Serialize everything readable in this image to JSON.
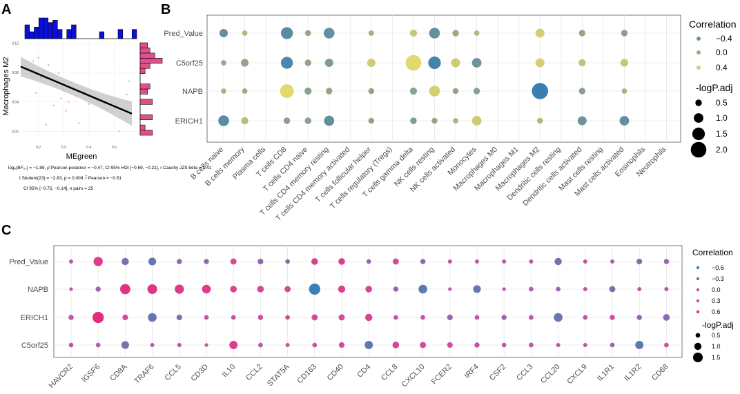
{
  "chart_data": [
    {
      "panel": "A",
      "type": "scatter",
      "xlabel": "MEgreen",
      "ylabel": "Macrophages M2",
      "xticks": [
        "0.2",
        "0.3",
        "0.4",
        "0.5"
      ],
      "yticks": [
        "0.00",
        "0.04",
        "0.08",
        "0.12"
      ],
      "xlim": [
        0.13,
        0.6
      ],
      "ylim": [
        -0.01,
        0.125
      ],
      "regression": {
        "x": [
          0.13,
          0.57
        ],
        "y": [
          0.088,
          0.024
        ]
      },
      "points": [
        {
          "x": 0.16,
          "y": 0.085
        },
        {
          "x": 0.18,
          "y": 0.095
        },
        {
          "x": 0.19,
          "y": 0.052
        },
        {
          "x": 0.2,
          "y": 0.1
        },
        {
          "x": 0.21,
          "y": 0.073
        },
        {
          "x": 0.22,
          "y": 0.081
        },
        {
          "x": 0.23,
          "y": 0.009
        },
        {
          "x": 0.24,
          "y": 0.09
        },
        {
          "x": 0.26,
          "y": 0.035
        },
        {
          "x": 0.27,
          "y": 0.062
        },
        {
          "x": 0.28,
          "y": 0.079
        },
        {
          "x": 0.29,
          "y": 0.045
        },
        {
          "x": 0.3,
          "y": 0.057
        },
        {
          "x": 0.31,
          "y": 0.028
        },
        {
          "x": 0.32,
          "y": 0.04
        },
        {
          "x": 0.33,
          "y": 0.066
        },
        {
          "x": 0.35,
          "y": 0.048
        },
        {
          "x": 0.36,
          "y": 0.011
        },
        {
          "x": 0.38,
          "y": 0.054
        },
        {
          "x": 0.4,
          "y": 0.037
        },
        {
          "x": 0.43,
          "y": 0.042
        },
        {
          "x": 0.47,
          "y": 0.03
        },
        {
          "x": 0.52,
          "y": 0.0
        },
        {
          "x": 0.55,
          "y": 0.05
        },
        {
          "x": 0.56,
          "y": 0.068
        }
      ],
      "top_histogram": [
        6,
        3,
        5,
        9,
        9,
        7,
        8,
        4,
        0,
        4,
        6,
        0,
        0,
        0,
        0,
        0,
        3,
        0,
        0,
        0,
        4,
        0,
        0,
        4
      ],
      "right_histogram": [
        5,
        2,
        0,
        5,
        0,
        0,
        5,
        0,
        3,
        4,
        0,
        0,
        2,
        4,
        9,
        6,
        4,
        3
      ],
      "stats": [
        "logₑ(BF₀₁) = −1.89, ρ̂ Pearson posterior = −0.47, CI 95% HDI [−0.69, −0.21], r Cauchy JZS beta = 1.41",
        "t Student(23) = −2.83, p = 0.009, r̂ Pearson = −0.51",
        "CI 95% [−0.75, −0.14], n pairs = 25"
      ]
    },
    {
      "panel": "B",
      "type": "scatter",
      "rows": [
        "Pred_Value",
        "C5orf25",
        "NAPB",
        "ERICH1"
      ],
      "columns": [
        "B cells naive",
        "B cells memory",
        "Plasma cells",
        "T cells CD8",
        "T cells CD4 naive",
        "T cells CD4 memory resting",
        "T cells CD4 memory activated",
        "T cells follicular helper",
        "T cells regulatory (Tregs)",
        "T cells gamma delta",
        "NK cells resting",
        "NK cells activated",
        "Monocytes",
        "Macrophages M0",
        "Macrophages M1",
        "Macrophages M2",
        "Dendritic cells resting",
        "Dendritic cells activated",
        "Mast cells resting",
        "Mast cells activated",
        "Eosinophils",
        "Neutrophils"
      ],
      "correlation": [
        [
          -0.35,
          0.1,
          null,
          -0.4,
          -0.1,
          -0.35,
          null,
          0.0,
          null,
          0.25,
          -0.35,
          -0.05,
          0.1,
          null,
          null,
          0.35,
          null,
          -0.1,
          null,
          -0.15,
          null,
          null
        ],
        [
          -0.05,
          -0.1,
          null,
          -0.45,
          -0.1,
          -0.2,
          null,
          0.3,
          null,
          0.45,
          -0.5,
          0.3,
          -0.3,
          null,
          null,
          0.35,
          null,
          0.2,
          null,
          0.25,
          null,
          null
        ],
        [
          0.05,
          -0.05,
          null,
          0.45,
          -0.15,
          -0.1,
          null,
          -0.1,
          null,
          -0.15,
          0.35,
          -0.1,
          -0.15,
          null,
          null,
          -0.55,
          null,
          -0.15,
          null,
          0.05,
          null,
          null
        ],
        [
          -0.4,
          0.15,
          null,
          -0.15,
          -0.15,
          -0.35,
          null,
          -0.1,
          null,
          -0.2,
          -0.1,
          0.05,
          0.3,
          null,
          null,
          0.1,
          null,
          -0.3,
          null,
          -0.35,
          null,
          null
        ]
      ],
      "neglogp": [
        [
          0.8,
          0.3,
          null,
          1.4,
          0.4,
          1.2,
          null,
          0.3,
          null,
          0.6,
          1.2,
          0.5,
          0.3,
          null,
          null,
          0.9,
          null,
          0.5,
          null,
          0.5,
          null,
          null
        ],
        [
          0.3,
          0.7,
          null,
          1.4,
          0.5,
          0.8,
          null,
          0.8,
          null,
          2.0,
          1.5,
          0.9,
          1.0,
          null,
          null,
          0.9,
          null,
          0.6,
          null,
          0.7,
          null,
          null
        ],
        [
          0.3,
          0.3,
          null,
          1.7,
          0.6,
          0.5,
          null,
          0.4,
          null,
          0.6,
          1.2,
          0.4,
          0.5,
          null,
          null,
          2.1,
          null,
          0.5,
          null,
          0.3,
          null,
          null
        ],
        [
          1.2,
          0.6,
          null,
          0.5,
          0.5,
          1.1,
          null,
          0.4,
          null,
          0.5,
          0.4,
          0.3,
          1.0,
          null,
          null,
          0.4,
          null,
          0.9,
          null,
          1.0,
          null,
          null
        ]
      ],
      "legend_correlation": {
        "title": "Correlation",
        "labels": [
          "−0.4",
          "0.0",
          "0.4"
        ],
        "colors": [
          "#6a96a4",
          "#a3ab80",
          "#d8ce68"
        ]
      },
      "legend_size": {
        "title": "-logP.adj",
        "labels": [
          "0.5",
          "1.0",
          "1.5",
          "2.0"
        ]
      },
      "colors": {
        "neg": "#3a7fb0",
        "mid": "#a3ab80",
        "pos": "#e8de6c"
      }
    },
    {
      "panel": "C",
      "type": "scatter",
      "rows": [
        "Pred_Value",
        "NAPB",
        "ERICH1",
        "C5orf25"
      ],
      "columns": [
        "HAVCR2",
        "IGSF6",
        "CD8A",
        "TRAF6",
        "CCL5",
        "CD3D",
        "IL10",
        "CCL2",
        "STAT5A",
        "CD163",
        "CD40",
        "CD4",
        "CCL8",
        "CXCL10",
        "FCER2",
        "IRF4",
        "CSF2",
        "CCL3",
        "CCL20",
        "CXCL9",
        "IL1R1",
        "IL1R2",
        "CD68"
      ],
      "correlation": [
        [
          0.0,
          0.45,
          -0.35,
          -0.4,
          -0.2,
          -0.2,
          0.3,
          -0.2,
          -0.15,
          0.4,
          0.4,
          -0.15,
          0.3,
          -0.2,
          0.1,
          0.1,
          0.1,
          0.05,
          -0.35,
          0.1,
          -0.05,
          -0.2,
          -0.15
        ],
        [
          0.1,
          -0.15,
          0.55,
          0.5,
          0.45,
          0.45,
          0.35,
          0.35,
          0.3,
          -0.6,
          0.4,
          0.35,
          -0.2,
          -0.45,
          0.0,
          -0.4,
          0.0,
          0.0,
          -0.15,
          0.1,
          -0.3,
          0.0,
          0.0
        ],
        [
          0.1,
          0.6,
          0.3,
          -0.4,
          -0.25,
          0.15,
          0.1,
          0.2,
          0.15,
          0.3,
          0.3,
          0.4,
          0.1,
          0.15,
          -0.2,
          0.1,
          -0.15,
          0.1,
          -0.4,
          0.1,
          0.2,
          -0.15,
          -0.25
        ],
        [
          0.1,
          0.0,
          -0.35,
          0.0,
          0.1,
          0.05,
          0.45,
          0.1,
          0.1,
          0.15,
          0.2,
          -0.45,
          0.35,
          0.3,
          0.3,
          0.15,
          0.1,
          0.1,
          0.1,
          0.05,
          -0.15,
          -0.45,
          0.15
        ]
      ],
      "neglogp": [
        [
          0.4,
          1.4,
          1.0,
          1.1,
          0.6,
          0.6,
          0.8,
          0.7,
          0.5,
          0.9,
          0.9,
          0.5,
          0.8,
          0.6,
          0.4,
          0.4,
          0.4,
          0.4,
          1.0,
          0.4,
          0.4,
          0.7,
          0.6
        ],
        [
          0.3,
          0.6,
          1.6,
          1.5,
          1.4,
          1.3,
          0.9,
          0.9,
          0.8,
          1.8,
          1.0,
          0.9,
          0.6,
          1.3,
          0.3,
          1.1,
          0.3,
          0.5,
          0.5,
          0.4,
          0.8,
          0.4,
          0.4
        ],
        [
          0.6,
          1.8,
          0.7,
          1.3,
          0.7,
          0.5,
          0.5,
          0.6,
          0.5,
          0.8,
          0.8,
          1.0,
          0.5,
          0.5,
          0.7,
          0.5,
          0.6,
          0.5,
          1.3,
          0.5,
          0.6,
          0.6,
          0.9
        ],
        [
          0.5,
          0.5,
          1.1,
          0.4,
          0.4,
          0.3,
          1.2,
          0.5,
          0.4,
          0.5,
          0.7,
          1.2,
          0.9,
          0.8,
          0.7,
          0.6,
          0.5,
          0.5,
          0.4,
          0.4,
          0.5,
          1.2,
          0.5
        ]
      ],
      "legend_correlation": {
        "title": "Correlation",
        "labels": [
          "−0.6",
          "−0.3",
          "0.0",
          "0.3",
          "0.6"
        ],
        "colors": [
          "#3a80b8",
          "#7f6fb0",
          "#b55bac",
          "#d44a98",
          "#e32e80"
        ]
      },
      "legend_size": {
        "title": "-logP.adj",
        "labels": [
          "0.5",
          "1.0",
          "1.5"
        ]
      }
    }
  ],
  "panel_letters": {
    "a": "A",
    "b": "B",
    "c": "C"
  }
}
